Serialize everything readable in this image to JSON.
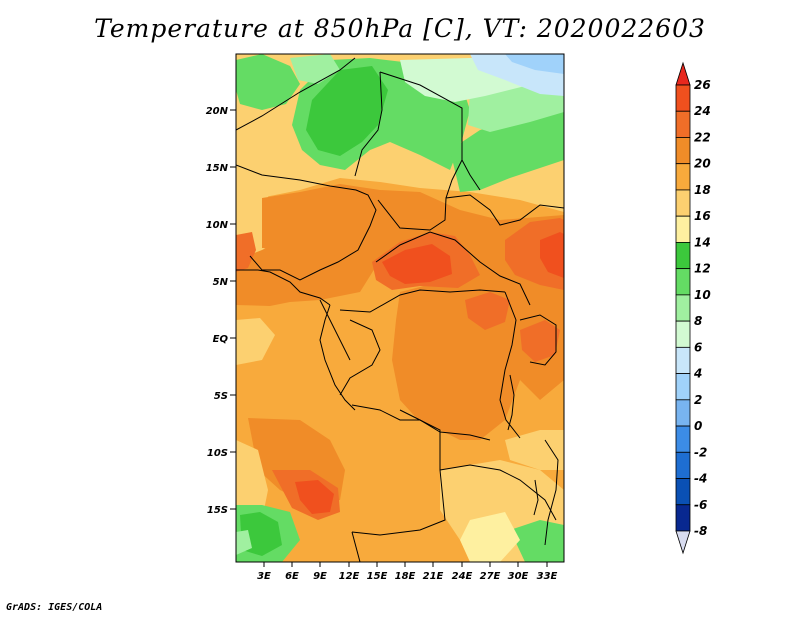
{
  "title": "Temperature at 850hPa [C], VT: 2020022603",
  "footer": "GrADS: IGES/COLA",
  "lat_labels": [
    "20N",
    "15N",
    "10N",
    "5N",
    "EQ",
    "5S",
    "10S",
    "15S"
  ],
  "lon_labels": [
    "3E",
    "6E",
    "9E",
    "12E",
    "15E",
    "18E",
    "21E",
    "24E",
    "27E",
    "30E",
    "33E"
  ],
  "colorbar": {
    "labels": [
      "26",
      "24",
      "22",
      "20",
      "18",
      "16",
      "14",
      "12",
      "10",
      "8",
      "6",
      "4",
      "2",
      "0",
      "-2",
      "-4",
      "-6",
      "-8"
    ],
    "colors": [
      "#e8281e",
      "#f0501e",
      "#f06e28",
      "#f08c28",
      "#f8aa3c",
      "#fcd070",
      "#fef0a0",
      "#3cc83c",
      "#64dc64",
      "#a0f0a0",
      "#d2fad2",
      "#c8e6fa",
      "#a0d2fa",
      "#78b4f0",
      "#3c8ce6",
      "#1e6ed2",
      "#0a50b4",
      "#082890",
      "#0a0a6e",
      "#d8dcf0"
    ]
  },
  "palette": {
    "yellow": "#fcd070",
    "light_orange": "#f8aa3c",
    "orange": "#f08c28",
    "dark_orange": "#f06e28",
    "red_orange": "#f0501e",
    "green": "#3cc83c",
    "mid_green": "#64dc64",
    "light_green": "#a0f0a0",
    "pale_green": "#d2fad2",
    "pale_blue": "#c8e6fa",
    "light_blue": "#a0d2fa",
    "pale_yellow": "#fef0a0"
  }
}
